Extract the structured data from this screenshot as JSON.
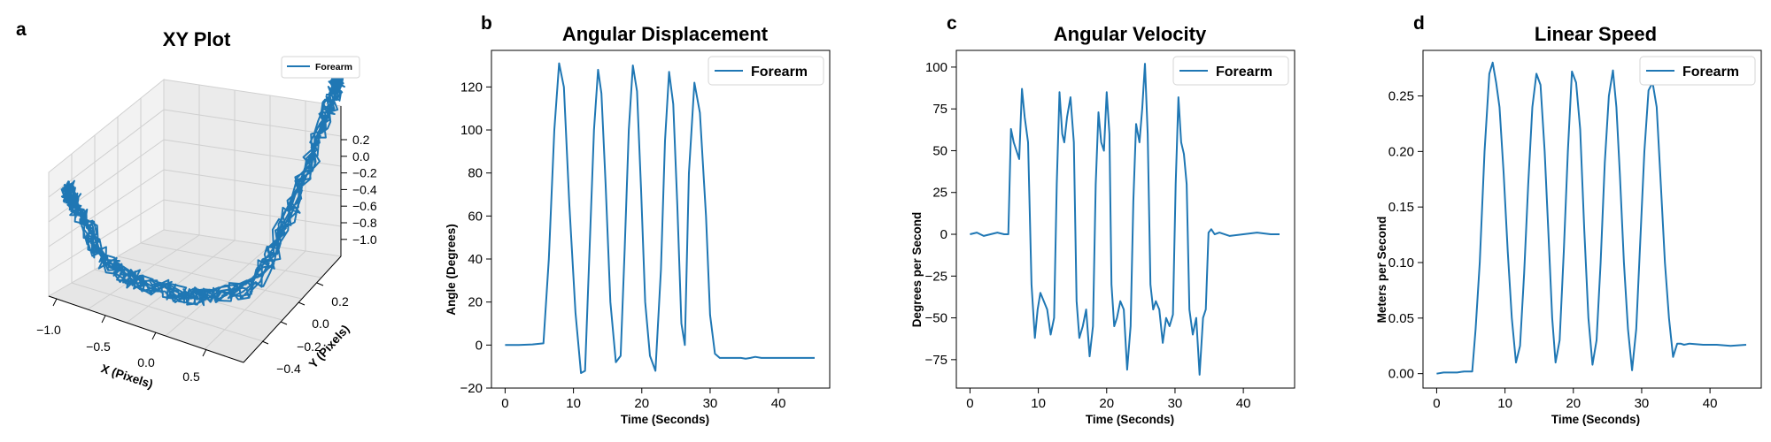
{
  "series_color": "#1f77b4",
  "panels": {
    "a": {
      "letter": "a",
      "title": "XY Plot",
      "xlabel": "X (Pixels)",
      "ylabel": "Y (Pixels)",
      "legend": "Forearm",
      "xticks": [
        "−1.0",
        "−0.5",
        "0.0",
        "0.5"
      ],
      "yticks": [
        "−0.4",
        "−0.2",
        "0.0",
        "0.2"
      ],
      "zticks": [
        "0.2",
        "0.0",
        "−0.2",
        "−0.4",
        "−0.6",
        "−0.8",
        "−1.0"
      ]
    },
    "b": {
      "letter": "b",
      "title": "Angular Displacement",
      "xlabel": "Time (Seconds)",
      "ylabel": "Angle (Degrees)",
      "legend": "Forearm",
      "xticks": [
        "0",
        "10",
        "20",
        "30",
        "40"
      ],
      "yticks": [
        "−20",
        "0",
        "20",
        "40",
        "60",
        "80",
        "100",
        "120"
      ]
    },
    "c": {
      "letter": "c",
      "title": "Angular Velocity",
      "xlabel": "Time (Seconds)",
      "ylabel": "Degrees per Second",
      "legend": "Forearm",
      "xticks": [
        "0",
        "10",
        "20",
        "30",
        "40"
      ],
      "yticks": [
        "−75",
        "−50",
        "−25",
        "0",
        "25",
        "50",
        "75",
        "100"
      ]
    },
    "d": {
      "letter": "d",
      "title": "Linear Speed",
      "xlabel": "Time (Seconds)",
      "ylabel": "Meters per Second",
      "legend": "Forearm",
      "xticks": [
        "0",
        "10",
        "20",
        "30",
        "40"
      ],
      "yticks": [
        "0.00",
        "0.05",
        "0.10",
        "0.15",
        "0.20",
        "0.25"
      ]
    }
  },
  "chart_data": [
    {
      "type": "line",
      "title": "XY Plot",
      "xlabel": "X (Pixels)",
      "ylabel": "Y (Pixels)",
      "xlim": [
        -1.0,
        0.9
      ],
      "ylim": [
        -0.45,
        0.35
      ],
      "zlim": [
        -1.0,
        0.25
      ],
      "legend": "top-right",
      "grid": true,
      "series": [
        {
          "name": "Forearm",
          "x": [
            -0.95,
            -0.85,
            -0.7,
            -0.55,
            -0.4,
            -0.25,
            -0.1,
            0.05,
            0.2,
            0.35,
            0.5,
            0.6,
            0.7,
            0.8,
            0.85
          ],
          "z": [
            -0.45,
            -0.6,
            -0.75,
            -0.85,
            -0.92,
            -0.95,
            -0.95,
            -0.9,
            -0.82,
            -0.7,
            -0.55,
            -0.35,
            -0.1,
            0.1,
            0.2
          ]
        }
      ]
    },
    {
      "type": "line",
      "title": "Angular Displacement",
      "xlabel": "Time (Seconds)",
      "ylabel": "Angle (Degrees)",
      "xlim": [
        -2,
        47.5
      ],
      "ylim": [
        -20,
        137
      ],
      "legend": "top-right",
      "grid": false,
      "series": [
        {
          "name": "Forearm",
          "x": [
            0,
            2,
            4,
            5.6,
            6.4,
            7.2,
            7.9,
            8.6,
            9.4,
            10.3,
            11.1,
            11.7,
            12.3,
            13.0,
            13.6,
            14.1,
            14.7,
            15.4,
            16.2,
            16.9,
            17.5,
            18.1,
            18.7,
            19.3,
            19.9,
            20.5,
            21.2,
            22.0,
            22.8,
            23.4,
            24.0,
            24.6,
            25.2,
            25.8,
            26.3,
            26.9,
            27.7,
            28.5,
            29.4,
            30.0,
            30.7,
            31.4,
            32.2,
            32.9,
            33.7,
            34.5,
            35.2,
            35.9,
            36.6,
            37.5,
            40,
            43,
            45.3
          ],
          "y": [
            0,
            0,
            0.3,
            0.8,
            40,
            100,
            131,
            120,
            65,
            15,
            -13,
            -12,
            40,
            100,
            128,
            117,
            75,
            20,
            -8,
            -5,
            45,
            100,
            130,
            118,
            72,
            20,
            -5,
            -12,
            35,
            95,
            127,
            112,
            65,
            10,
            0,
            80,
            122,
            108,
            60,
            14,
            -4,
            -6,
            -6,
            -6,
            -6,
            -6,
            -6.3,
            -6,
            -5.5,
            -6,
            -6,
            -6,
            -6
          ]
        }
      ]
    },
    {
      "type": "line",
      "title": "Angular Velocity",
      "xlabel": "Time (Seconds)",
      "ylabel": "Degrees per Second",
      "xlim": [
        -2,
        47.5
      ],
      "ylim": [
        -92,
        110
      ],
      "legend": "top-right",
      "grid": false,
      "series": [
        {
          "name": "Forearm",
          "x": [
            0,
            1,
            2,
            3,
            4,
            5,
            5.6,
            6.0,
            6.4,
            6.8,
            7.2,
            7.6,
            8.0,
            8.5,
            9.0,
            9.5,
            9.9,
            10.3,
            10.8,
            11.3,
            11.8,
            12.3,
            12.7,
            13.1,
            13.5,
            13.8,
            14.2,
            14.7,
            15.2,
            15.6,
            16.0,
            16.5,
            17.0,
            17.5,
            18.0,
            18.4,
            18.8,
            19.2,
            19.6,
            20.0,
            20.4,
            20.7,
            21.1,
            21.5,
            22.0,
            22.5,
            23.0,
            23.5,
            23.9,
            24.3,
            24.8,
            25.2,
            25.6,
            26.0,
            26.4,
            26.8,
            27.2,
            27.7,
            28.2,
            28.7,
            29.2,
            29.7,
            30.1,
            30.5,
            30.9,
            31.3,
            31.7,
            32.1,
            32.6,
            33.1,
            33.6,
            34.1,
            34.5,
            34.9,
            35.3,
            35.8,
            36.5,
            38,
            40,
            42,
            44,
            45.3
          ],
          "y": [
            0,
            1,
            -1,
            0,
            1,
            0,
            0,
            63,
            55,
            50,
            45,
            87,
            70,
            55,
            -30,
            -62,
            -45,
            -35,
            -40,
            -45,
            -60,
            -50,
            30,
            85,
            60,
            55,
            70,
            82,
            55,
            -40,
            -62,
            -55,
            -45,
            -73,
            -55,
            30,
            73,
            55,
            50,
            85,
            60,
            -30,
            -55,
            -50,
            -40,
            -45,
            -81,
            -55,
            20,
            66,
            55,
            75,
            102,
            60,
            -30,
            -45,
            -40,
            -45,
            -65,
            -50,
            -55,
            -48,
            30,
            82,
            55,
            48,
            30,
            -45,
            -60,
            -50,
            -84,
            -50,
            -45,
            1,
            3,
            0,
            1,
            -1,
            0,
            1,
            0,
            0
          ]
        }
      ]
    },
    {
      "type": "line",
      "title": "Linear Speed",
      "xlabel": "Time (Seconds)",
      "ylabel": "Meters per Second",
      "xlim": [
        -2,
        47.5
      ],
      "ylim": [
        -0.013,
        0.291
      ],
      "legend": "top-right",
      "grid": false,
      "series": [
        {
          "name": "Forearm",
          "x": [
            0,
            1,
            2,
            3,
            4,
            5.2,
            5.7,
            6.3,
            7.0,
            7.7,
            8.2,
            8.7,
            9.2,
            9.8,
            10.4,
            11.0,
            11.6,
            12.2,
            12.8,
            13.4,
            14.0,
            14.6,
            15.2,
            15.8,
            16.4,
            16.9,
            17.4,
            18.0,
            18.6,
            19.2,
            19.8,
            20.4,
            21.0,
            21.6,
            22.2,
            22.8,
            23.4,
            24.0,
            24.6,
            25.2,
            25.8,
            26.3,
            26.8,
            27.4,
            28.0,
            28.6,
            29.2,
            29.8,
            30.4,
            31.0,
            31.6,
            32.2,
            32.8,
            33.4,
            34.0,
            34.6,
            35.2,
            35.7,
            36.2,
            37,
            39,
            41,
            43,
            45.3
          ],
          "y": [
            0,
            0.001,
            0.001,
            0.001,
            0.002,
            0.002,
            0.04,
            0.1,
            0.2,
            0.27,
            0.28,
            0.262,
            0.24,
            0.18,
            0.11,
            0.05,
            0.01,
            0.025,
            0.09,
            0.17,
            0.24,
            0.27,
            0.26,
            0.2,
            0.12,
            0.05,
            0.01,
            0.03,
            0.11,
            0.2,
            0.272,
            0.262,
            0.22,
            0.13,
            0.05,
            0.008,
            0.03,
            0.1,
            0.19,
            0.25,
            0.273,
            0.24,
            0.18,
            0.1,
            0.04,
            0.003,
            0.04,
            0.12,
            0.2,
            0.255,
            0.262,
            0.24,
            0.17,
            0.1,
            0.05,
            0.015,
            0.027,
            0.027,
            0.026,
            0.027,
            0.026,
            0.026,
            0.025,
            0.026
          ]
        }
      ]
    }
  ]
}
